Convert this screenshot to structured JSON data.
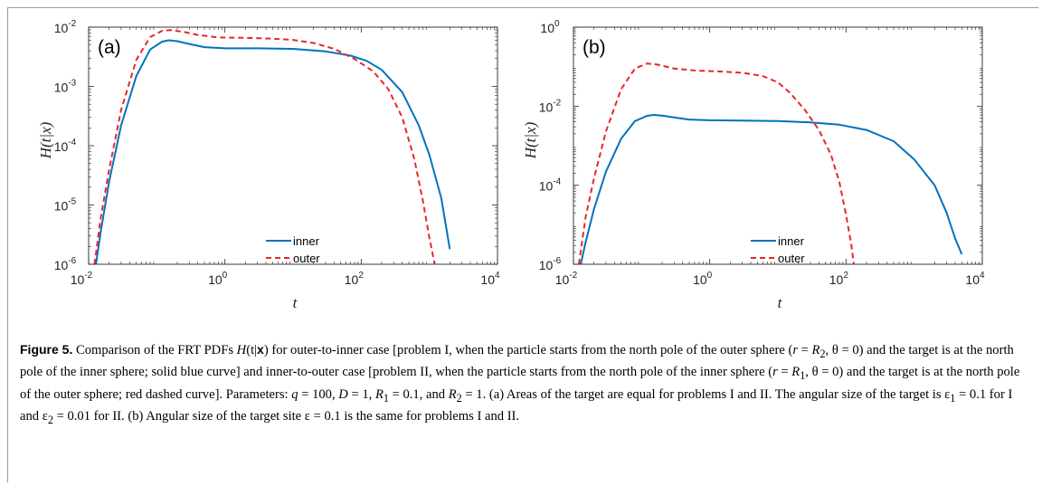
{
  "chart_data": [
    {
      "type": "line",
      "panel_label": "(a)",
      "xlabel": "t",
      "ylabel": "H(t|x)",
      "x_scale": "log",
      "y_scale": "log",
      "xlim": [
        0.01,
        10000
      ],
      "ylim": [
        1e-06,
        0.01
      ],
      "x_ticks": [
        {
          "base": "10",
          "exp": "-2"
        },
        {
          "base": "10",
          "exp": "0"
        },
        {
          "base": "10",
          "exp": "2"
        },
        {
          "base": "10",
          "exp": "4"
        }
      ],
      "y_ticks": [
        {
          "base": "10",
          "exp": "-6"
        },
        {
          "base": "10",
          "exp": "-5"
        },
        {
          "base": "10",
          "exp": "-4"
        },
        {
          "base": "10",
          "exp": "-3"
        },
        {
          "base": "10",
          "exp": "-2"
        }
      ],
      "legend_position": "bottom-center",
      "series": [
        {
          "name": "inner",
          "color": "#0072BD",
          "dash": "solid",
          "points": [
            [
              0.0128,
              1e-06
            ],
            [
              0.015,
              3.5e-06
            ],
            [
              0.02,
              2.5e-05
            ],
            [
              0.03,
              0.00022
            ],
            [
              0.05,
              0.0015
            ],
            [
              0.08,
              0.0042
            ],
            [
              0.12,
              0.0057
            ],
            [
              0.15,
              0.006
            ],
            [
              0.2,
              0.0058
            ],
            [
              0.3,
              0.0052
            ],
            [
              0.5,
              0.0046
            ],
            [
              1,
              0.0044
            ],
            [
              3,
              0.0044
            ],
            [
              10,
              0.0043
            ],
            [
              30,
              0.0039
            ],
            [
              70,
              0.0033
            ],
            [
              120,
              0.0027
            ],
            [
              200,
              0.0019
            ],
            [
              400,
              0.0008
            ],
            [
              700,
              0.00022
            ],
            [
              1000,
              7e-05
            ],
            [
              1500,
              1.3e-05
            ],
            [
              2000,
              1.8e-06
            ]
          ]
        },
        {
          "name": "outer",
          "color": "#E8262A",
          "dash": "dashed",
          "points": [
            [
              0.0122,
              1e-06
            ],
            [
              0.015,
              6e-06
            ],
            [
              0.02,
              4e-05
            ],
            [
              0.03,
              0.0004
            ],
            [
              0.05,
              0.0028
            ],
            [
              0.08,
              0.0068
            ],
            [
              0.12,
              0.0087
            ],
            [
              0.16,
              0.0089
            ],
            [
              0.25,
              0.0083
            ],
            [
              0.4,
              0.0074
            ],
            [
              0.8,
              0.0067
            ],
            [
              2,
              0.0066
            ],
            [
              5,
              0.0064
            ],
            [
              10,
              0.0061
            ],
            [
              20,
              0.0054
            ],
            [
              40,
              0.0043
            ],
            [
              80,
              0.0029
            ],
            [
              150,
              0.0018
            ],
            [
              250,
              0.0009
            ],
            [
              400,
              0.0003
            ],
            [
              600,
              6e-05
            ],
            [
              800,
              1.2e-05
            ],
            [
              1000,
              2.8e-06
            ],
            [
              1200,
              1e-06
            ]
          ]
        }
      ]
    },
    {
      "type": "line",
      "panel_label": "(b)",
      "xlabel": "t",
      "ylabel": "H(t|x)",
      "x_scale": "log",
      "y_scale": "log",
      "xlim": [
        0.01,
        10000
      ],
      "ylim": [
        1e-06,
        1
      ],
      "x_ticks": [
        {
          "base": "10",
          "exp": "-2"
        },
        {
          "base": "10",
          "exp": "0"
        },
        {
          "base": "10",
          "exp": "2"
        },
        {
          "base": "10",
          "exp": "4"
        }
      ],
      "y_ticks": [
        {
          "base": "10",
          "exp": "-6"
        },
        {
          "base": "10",
          "exp": "-4"
        },
        {
          "base": "10",
          "exp": "-2"
        },
        {
          "base": "10",
          "exp": "0"
        }
      ],
      "legend_position": "bottom-center",
      "series": [
        {
          "name": "inner",
          "color": "#0072BD",
          "dash": "solid",
          "points": [
            [
              0.0128,
              1e-06
            ],
            [
              0.015,
              3.5e-06
            ],
            [
              0.02,
              2.5e-05
            ],
            [
              0.03,
              0.00022
            ],
            [
              0.05,
              0.0015
            ],
            [
              0.08,
              0.0042
            ],
            [
              0.12,
              0.0057
            ],
            [
              0.15,
              0.006
            ],
            [
              0.2,
              0.0058
            ],
            [
              0.3,
              0.0052
            ],
            [
              0.5,
              0.0046
            ],
            [
              1,
              0.0044
            ],
            [
              3,
              0.0043
            ],
            [
              10,
              0.0042
            ],
            [
              30,
              0.0039
            ],
            [
              80,
              0.0034
            ],
            [
              200,
              0.0025
            ],
            [
              500,
              0.0013
            ],
            [
              1000,
              0.00045
            ],
            [
              2000,
              0.0001
            ],
            [
              3000,
              2e-05
            ],
            [
              4000,
              4.5e-06
            ],
            [
              5000,
              1.8e-06
            ]
          ]
        },
        {
          "name": "outer",
          "color": "#E8262A",
          "dash": "dashed",
          "points": [
            [
              0.012,
              1e-06
            ],
            [
              0.015,
              1.5e-05
            ],
            [
              0.02,
              0.00015
            ],
            [
              0.03,
              0.0023
            ],
            [
              0.05,
              0.027
            ],
            [
              0.08,
              0.09
            ],
            [
              0.12,
              0.12
            ],
            [
              0.16,
              0.115
            ],
            [
              0.3,
              0.09
            ],
            [
              0.6,
              0.08
            ],
            [
              1.5,
              0.075
            ],
            [
              3,
              0.07
            ],
            [
              6,
              0.058
            ],
            [
              10,
              0.04
            ],
            [
              15,
              0.022
            ],
            [
              25,
              0.008
            ],
            [
              40,
              0.0025
            ],
            [
              60,
              0.0006
            ],
            [
              80,
              0.00012
            ],
            [
              100,
              1.8e-05
            ],
            [
              120,
              3e-06
            ],
            [
              130,
              1e-06
            ]
          ]
        }
      ]
    }
  ],
  "caption": {
    "figure_label": "Figure 5.",
    "parts": [
      "  Comparison of the FRT PDFs ",
      "H",
      "(t|",
      "x",
      ") for outer-to-inner case [problem I, when the particle starts from the north pole of the outer sphere (",
      "r",
      " = ",
      "R",
      "2",
      ", θ = 0) and the target is at the north pole of the inner sphere; solid blue curve] and inner-to-outer case [problem II, when the particle starts from the north pole of the inner sphere (",
      "r",
      " = ",
      "R",
      "1",
      ", θ = 0) and the target is at the north pole of the outer sphere; red dashed curve]. Parameters: ",
      "q",
      " = 100, ",
      "D",
      " = 1, ",
      "R",
      "1",
      " = 0.1, and ",
      "R",
      "2",
      " = 1. (a) Areas of the target are equal for problems I and II. The angular size of the target is ε",
      "1",
      " = 0.1 for I and ε",
      "2",
      " = 0.01 for II. (b) Angular size of the target site ε = 0.1 is the same for problems I and II."
    ]
  }
}
